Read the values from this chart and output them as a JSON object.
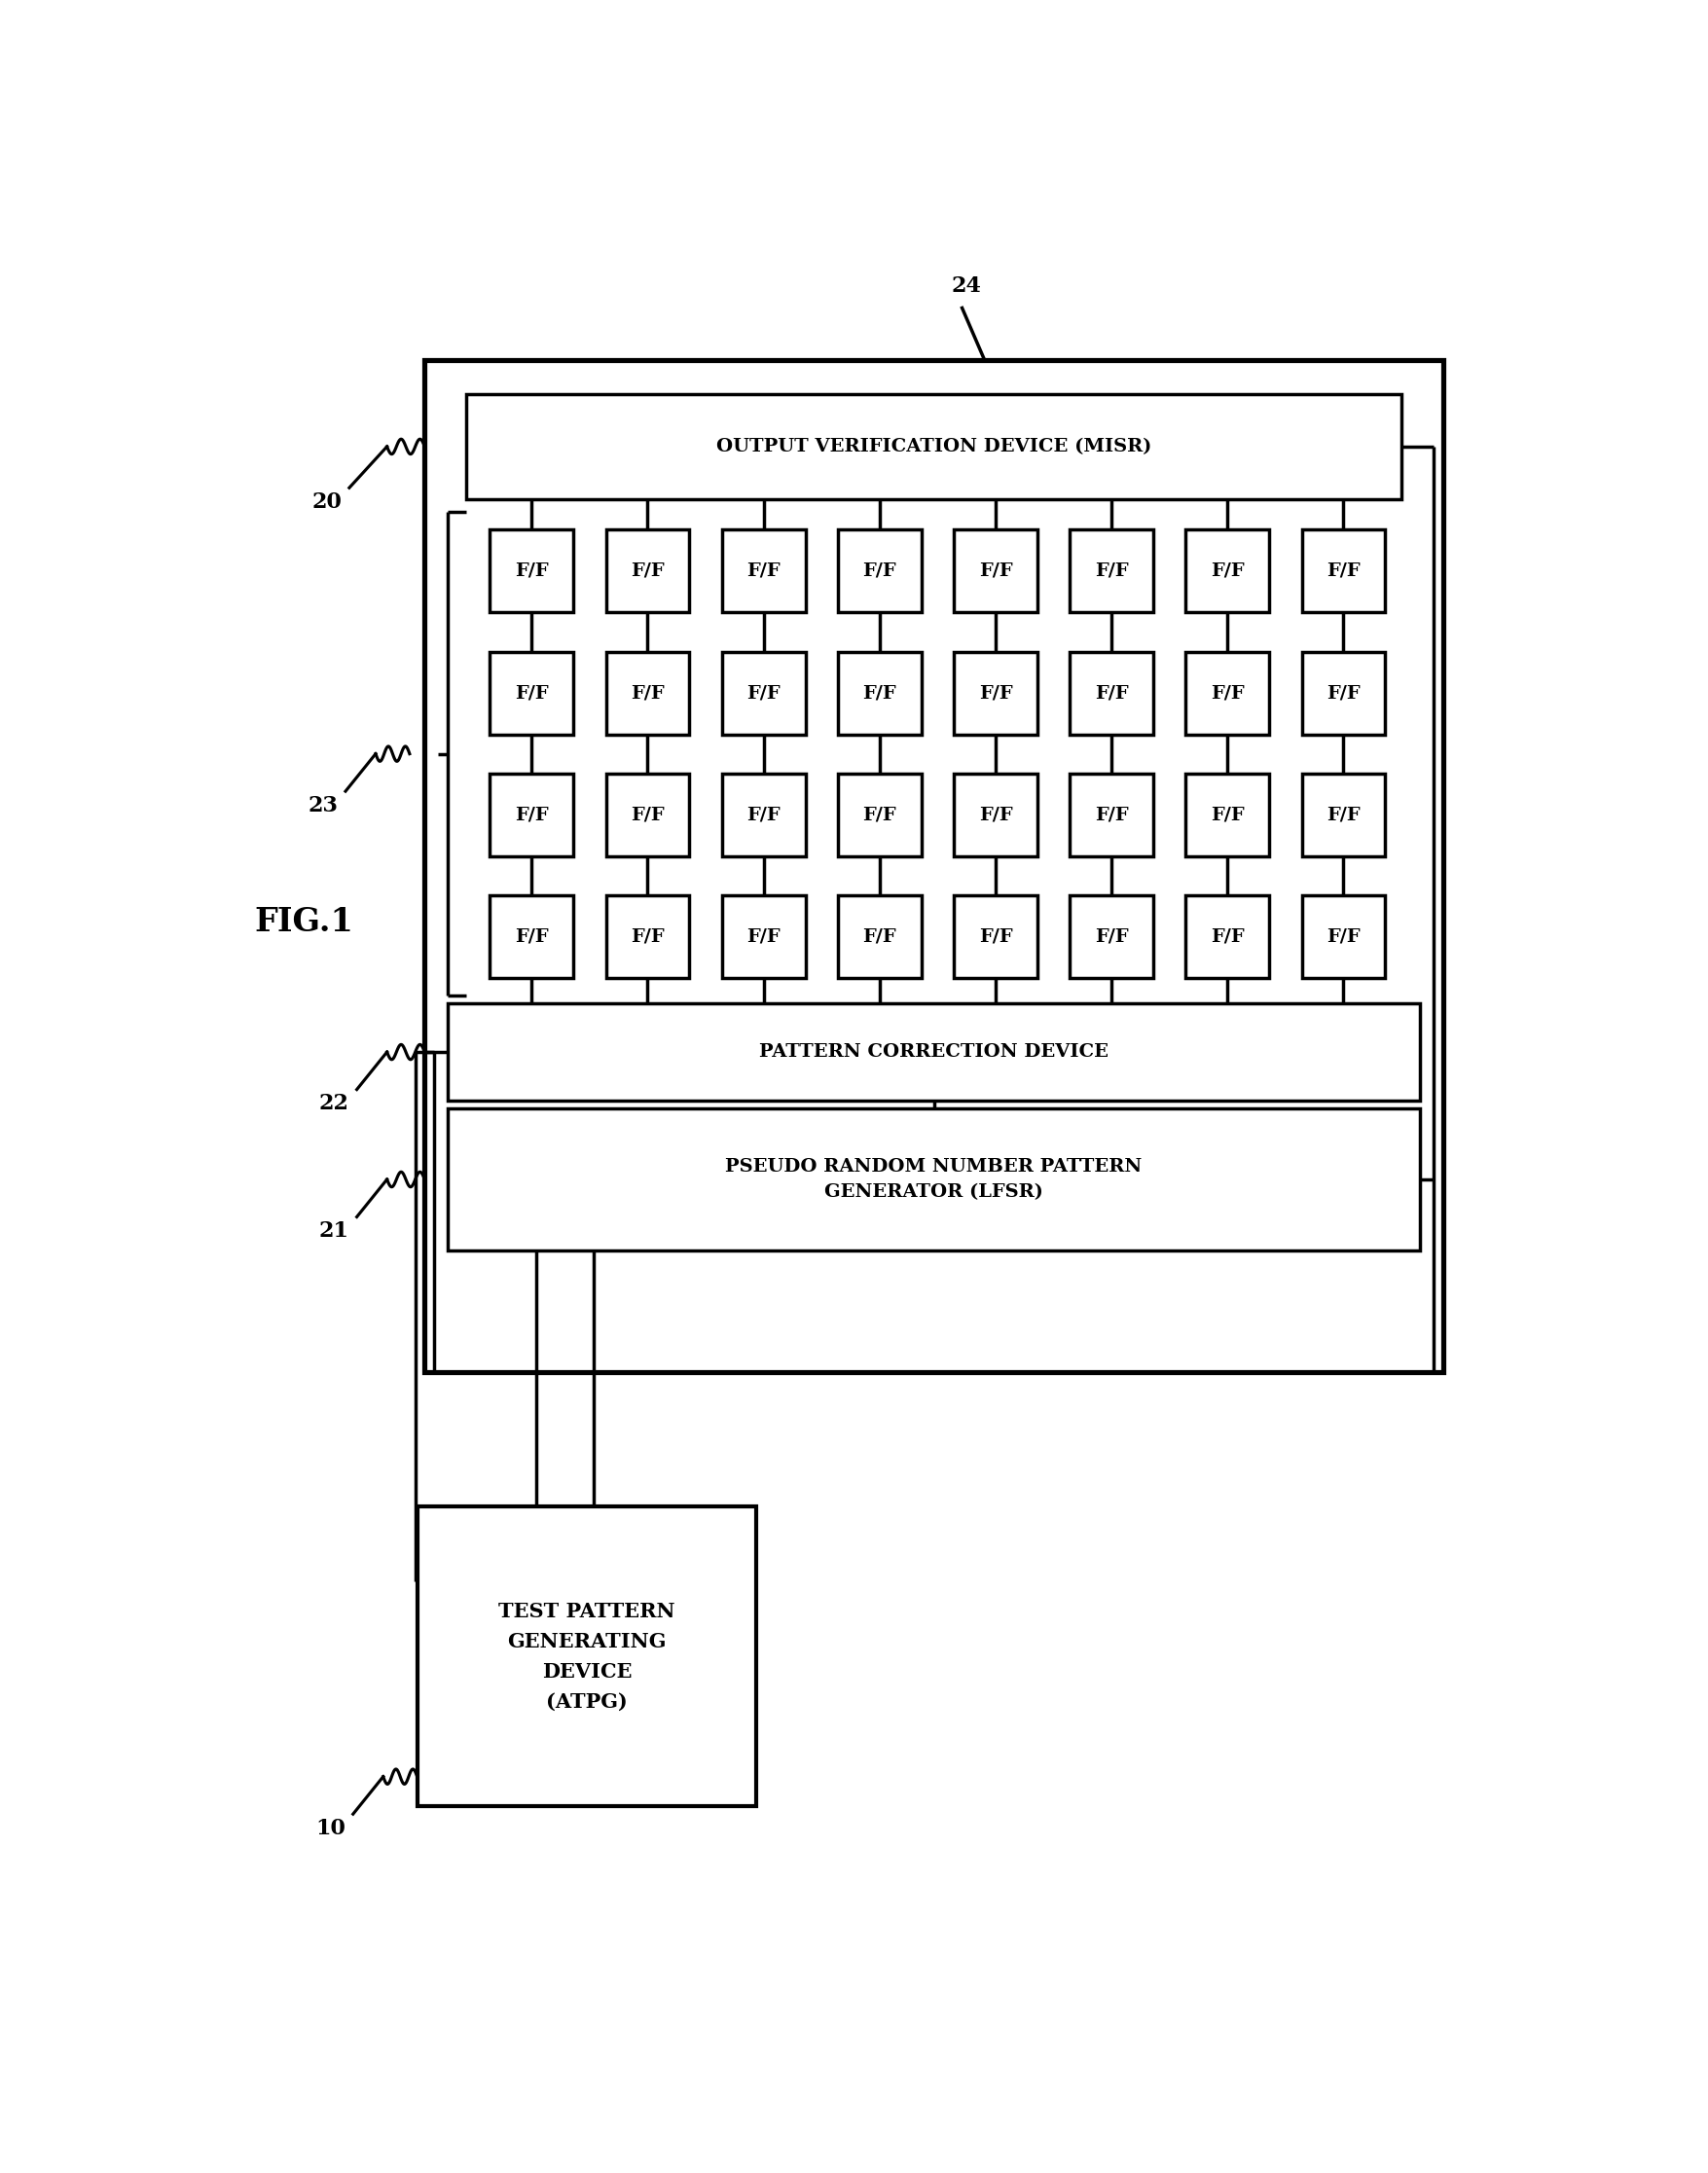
{
  "fig_label": "FIG.1",
  "bg_color": "#ffffff",
  "label_24": "24",
  "label_20": "20",
  "label_23": "23",
  "label_22": "22",
  "label_21": "21",
  "label_10": "10",
  "misr_label": "OUTPUT VERIFICATION DEVICE (MISR)",
  "ff_rows": 4,
  "ff_cols": 8,
  "ff_label": "F/F",
  "pcd_label": "PATTERN CORRECTION DEVICE",
  "prng_label": "PSEUDO RANDOM NUMBER PATTERN\nGENERATOR (LFSR)",
  "atpg_label": "TEST PATTERN\nGENERATING\nDEVICE\n(ATPG)",
  "line_color": "#000000",
  "text_color": "#000000",
  "line_width": 2.5,
  "font_size_large": 14,
  "font_size_medium": 13,
  "font_size_small": 12,
  "font_size_label": 16
}
